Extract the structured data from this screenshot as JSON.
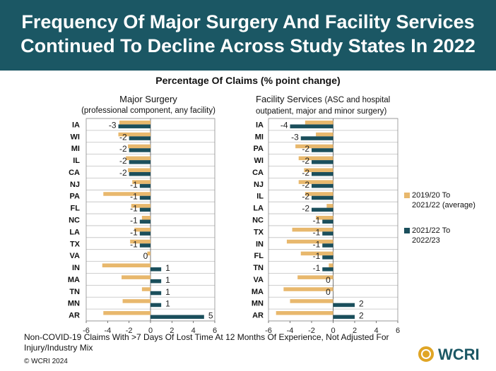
{
  "header": {
    "title": "Frequency Of Major Surgery And Facility Services\nContinued To Decline Across Study States In 2022",
    "subtitle": "Percentage Of Claims (% point change)"
  },
  "colors": {
    "banner": "#1b5764",
    "series_2019": "#e8b86d",
    "series_2021": "#1b4f5c",
    "grid": "#bfbfbf"
  },
  "legend": [
    {
      "label": "2019/20 To\n2021/22 (average)",
      "color": "#e8b86d"
    },
    {
      "label": "2021/22 To\n2022/23",
      "color": "#1b4f5c"
    }
  ],
  "chart_data": [
    {
      "type": "bar",
      "orientation": "horizontal",
      "title": "Major Surgery",
      "subtitle": "(professional component, any facility)",
      "categories": [
        "IA",
        "WI",
        "MI",
        "IL",
        "CA",
        "NJ",
        "PA",
        "FL",
        "NC",
        "LA",
        "TX",
        "VA",
        "IN",
        "MA",
        "TN",
        "MN",
        "AR"
      ],
      "series": [
        {
          "name": "2019/20 To 2021/22 (average)",
          "values": [
            -2.9,
            -3.0,
            -2.1,
            -2.3,
            -2.1,
            -1.7,
            -4.4,
            -1.8,
            -0.8,
            -1.5,
            -1.9,
            -0.3,
            -4.5,
            -2.7,
            -0.8,
            -2.6,
            -4.4
          ]
        },
        {
          "name": "2021/22 To 2022/23",
          "values": [
            -3,
            -2,
            -2,
            -2,
            -2,
            -1,
            -1,
            -1,
            -1,
            -1,
            -1,
            0,
            1,
            1,
            1,
            1,
            5
          ]
        }
      ],
      "labels": [
        "-3",
        "-2",
        "-2",
        "-2",
        "-2",
        "-1",
        "-1",
        "-1",
        "-1",
        "-1",
        "-1",
        "0",
        "1",
        "1",
        "1",
        "1",
        "5"
      ],
      "xlim": [
        -6,
        6
      ],
      "xticks": [
        "-6",
        "-4",
        "-2",
        "0",
        "2",
        "4",
        "6"
      ]
    },
    {
      "type": "bar",
      "orientation": "horizontal",
      "title": "Facility Services",
      "subtitle": "(ASC and hospital",
      "subtitle2": "outpatient, major and minor surgery)",
      "categories": [
        "IA",
        "MI",
        "PA",
        "WI",
        "CA",
        "NJ",
        "IL",
        "LA",
        "NC",
        "TX",
        "IN",
        "FL",
        "TN",
        "VA",
        "MA",
        "MN",
        "AR"
      ],
      "series": [
        {
          "name": "2019/20 To 2021/22 (average)",
          "values": [
            -2.6,
            -1.6,
            -3.5,
            -3.2,
            -2.7,
            -3.2,
            -2.6,
            -0.6,
            -1.6,
            -3.8,
            -4.3,
            -3.0,
            -0.4,
            -3.3,
            -4.6,
            -4.0,
            -5.3
          ]
        },
        {
          "name": "2021/22 To 2022/23",
          "values": [
            -4,
            -3,
            -2,
            -2,
            -2,
            -2,
            -2,
            -2,
            -1,
            -1,
            -1,
            -1,
            -1,
            0,
            0,
            2,
            2
          ]
        }
      ],
      "labels": [
        "-4",
        "-3",
        "-2",
        "-2",
        "-2",
        "-2",
        "-2",
        "-2",
        "-1",
        "-1",
        "-1",
        "-1",
        "-1",
        "0",
        "0",
        "2",
        "2"
      ],
      "xlim": [
        -6,
        6
      ],
      "xticks": [
        "-6",
        "-4",
        "-2",
        "0",
        "2",
        "4",
        "6"
      ]
    }
  ],
  "footnote": "Non-COVID-19 Claims With >7 Days Of Lost Time At 12 Months Of Experience, Not Adjusted For Injury/Industry Mix",
  "copyright": "© WCRI 2024",
  "logo_text": "WCRI"
}
